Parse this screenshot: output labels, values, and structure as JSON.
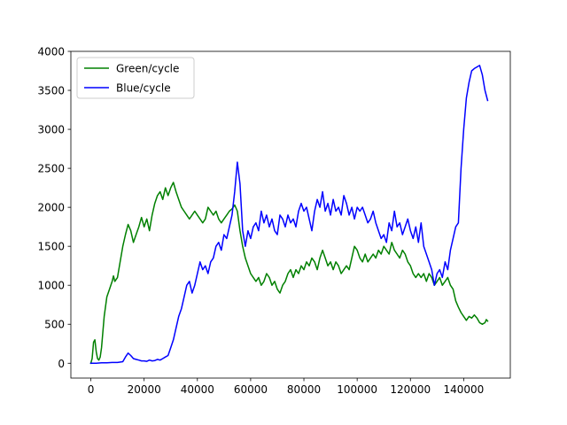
{
  "chart_data": {
    "type": "line",
    "title": "",
    "xlabel": "",
    "ylabel": "",
    "xlim": [
      -7500,
      157500
    ],
    "ylim": [
      -190,
      4000
    ],
    "x_ticks": [
      0,
      20000,
      40000,
      60000,
      80000,
      100000,
      120000,
      140000
    ],
    "x_tick_labels": [
      "0",
      "20000",
      "40000",
      "60000",
      "80000",
      "100000",
      "120000",
      "140000"
    ],
    "y_ticks": [
      0,
      500,
      1000,
      1500,
      2000,
      2500,
      3000,
      3500,
      4000
    ],
    "y_tick_labels": [
      "0",
      "500",
      "1000",
      "1500",
      "2000",
      "2500",
      "3000",
      "3500",
      "4000"
    ],
    "grid": false,
    "legend_position": "top-left",
    "series": [
      {
        "name": "Green/cycle",
        "color": "#008000",
        "points": [
          [
            0,
            0
          ],
          [
            500,
            60
          ],
          [
            1000,
            270
          ],
          [
            1500,
            300
          ],
          [
            2000,
            150
          ],
          [
            2500,
            60
          ],
          [
            3000,
            40
          ],
          [
            3500,
            80
          ],
          [
            4000,
            200
          ],
          [
            5000,
            600
          ],
          [
            6000,
            850
          ],
          [
            7000,
            950
          ],
          [
            8000,
            1050
          ],
          [
            8500,
            1120
          ],
          [
            9000,
            1050
          ],
          [
            10000,
            1100
          ],
          [
            11000,
            1300
          ],
          [
            12000,
            1500
          ],
          [
            13000,
            1650
          ],
          [
            14000,
            1780
          ],
          [
            15000,
            1700
          ],
          [
            16000,
            1550
          ],
          [
            17000,
            1650
          ],
          [
            18000,
            1750
          ],
          [
            19000,
            1870
          ],
          [
            20000,
            1750
          ],
          [
            21000,
            1850
          ],
          [
            22000,
            1700
          ],
          [
            23000,
            1900
          ],
          [
            24000,
            2050
          ],
          [
            25000,
            2150
          ],
          [
            26000,
            2200
          ],
          [
            27000,
            2100
          ],
          [
            28000,
            2250
          ],
          [
            29000,
            2150
          ],
          [
            30000,
            2250
          ],
          [
            31000,
            2320
          ],
          [
            32000,
            2200
          ],
          [
            33000,
            2100
          ],
          [
            34000,
            2000
          ],
          [
            35000,
            1950
          ],
          [
            36000,
            1900
          ],
          [
            37000,
            1850
          ],
          [
            38000,
            1900
          ],
          [
            39000,
            1950
          ],
          [
            40000,
            1900
          ],
          [
            41000,
            1850
          ],
          [
            42000,
            1800
          ],
          [
            43000,
            1850
          ],
          [
            44000,
            2000
          ],
          [
            45000,
            1950
          ],
          [
            46000,
            1900
          ],
          [
            47000,
            1950
          ],
          [
            48000,
            1850
          ],
          [
            49000,
            1800
          ],
          [
            50000,
            1850
          ],
          [
            51000,
            1900
          ],
          [
            52000,
            1950
          ],
          [
            53000,
            1980
          ],
          [
            54000,
            2030
          ],
          [
            55000,
            1950
          ],
          [
            56000,
            1700
          ],
          [
            57000,
            1500
          ],
          [
            58000,
            1350
          ],
          [
            59000,
            1250
          ],
          [
            60000,
            1150
          ],
          [
            61000,
            1100
          ],
          [
            62000,
            1050
          ],
          [
            63000,
            1100
          ],
          [
            64000,
            1000
          ],
          [
            65000,
            1050
          ],
          [
            66000,
            1150
          ],
          [
            67000,
            1100
          ],
          [
            68000,
            1000
          ],
          [
            69000,
            1050
          ],
          [
            70000,
            950
          ],
          [
            71000,
            900
          ],
          [
            72000,
            1000
          ],
          [
            73000,
            1050
          ],
          [
            74000,
            1150
          ],
          [
            75000,
            1200
          ],
          [
            76000,
            1100
          ],
          [
            77000,
            1200
          ],
          [
            78000,
            1150
          ],
          [
            79000,
            1250
          ],
          [
            80000,
            1200
          ],
          [
            81000,
            1300
          ],
          [
            82000,
            1250
          ],
          [
            83000,
            1350
          ],
          [
            84000,
            1300
          ],
          [
            85000,
            1200
          ],
          [
            86000,
            1350
          ],
          [
            87000,
            1450
          ],
          [
            88000,
            1350
          ],
          [
            89000,
            1250
          ],
          [
            90000,
            1300
          ],
          [
            91000,
            1200
          ],
          [
            92000,
            1300
          ],
          [
            93000,
            1250
          ],
          [
            94000,
            1150
          ],
          [
            95000,
            1200
          ],
          [
            96000,
            1250
          ],
          [
            97000,
            1200
          ],
          [
            98000,
            1350
          ],
          [
            99000,
            1500
          ],
          [
            100000,
            1450
          ],
          [
            101000,
            1350
          ],
          [
            102000,
            1300
          ],
          [
            103000,
            1400
          ],
          [
            104000,
            1300
          ],
          [
            105000,
            1350
          ],
          [
            106000,
            1400
          ],
          [
            107000,
            1350
          ],
          [
            108000,
            1450
          ],
          [
            109000,
            1400
          ],
          [
            110000,
            1500
          ],
          [
            111000,
            1450
          ],
          [
            112000,
            1400
          ],
          [
            113000,
            1550
          ],
          [
            114000,
            1450
          ],
          [
            115000,
            1400
          ],
          [
            116000,
            1350
          ],
          [
            117000,
            1450
          ],
          [
            118000,
            1400
          ],
          [
            119000,
            1300
          ],
          [
            120000,
            1250
          ],
          [
            121000,
            1150
          ],
          [
            122000,
            1100
          ],
          [
            123000,
            1150
          ],
          [
            124000,
            1100
          ],
          [
            125000,
            1150
          ],
          [
            126000,
            1050
          ],
          [
            127000,
            1150
          ],
          [
            128000,
            1100
          ],
          [
            129000,
            1000
          ],
          [
            130000,
            1050
          ],
          [
            131000,
            1100
          ],
          [
            132000,
            1000
          ],
          [
            133000,
            1050
          ],
          [
            134000,
            1100
          ],
          [
            135000,
            1000
          ],
          [
            136000,
            950
          ],
          [
            137000,
            800
          ],
          [
            138000,
            720
          ],
          [
            139000,
            650
          ],
          [
            140000,
            600
          ],
          [
            141000,
            550
          ],
          [
            142000,
            600
          ],
          [
            143000,
            580
          ],
          [
            144000,
            620
          ],
          [
            145000,
            580
          ],
          [
            146000,
            520
          ],
          [
            147000,
            500
          ],
          [
            148000,
            520
          ],
          [
            148500,
            560
          ],
          [
            149000,
            540
          ]
        ]
      },
      {
        "name": "Blue/cycle",
        "color": "#0000ff",
        "points": [
          [
            0,
            0
          ],
          [
            2000,
            0
          ],
          [
            4000,
            5
          ],
          [
            6000,
            5
          ],
          [
            8000,
            10
          ],
          [
            10000,
            10
          ],
          [
            12000,
            20
          ],
          [
            13000,
            80
          ],
          [
            14000,
            130
          ],
          [
            15000,
            100
          ],
          [
            16000,
            60
          ],
          [
            17000,
            50
          ],
          [
            18000,
            40
          ],
          [
            19000,
            30
          ],
          [
            20000,
            30
          ],
          [
            21000,
            25
          ],
          [
            22000,
            40
          ],
          [
            23000,
            30
          ],
          [
            24000,
            35
          ],
          [
            25000,
            50
          ],
          [
            26000,
            40
          ],
          [
            27000,
            60
          ],
          [
            28000,
            80
          ],
          [
            29000,
            100
          ],
          [
            30000,
            200
          ],
          [
            31000,
            300
          ],
          [
            32000,
            450
          ],
          [
            33000,
            600
          ],
          [
            34000,
            700
          ],
          [
            35000,
            850
          ],
          [
            36000,
            1000
          ],
          [
            37000,
            1050
          ],
          [
            38000,
            900
          ],
          [
            39000,
            1000
          ],
          [
            40000,
            1150
          ],
          [
            41000,
            1300
          ],
          [
            42000,
            1200
          ],
          [
            43000,
            1250
          ],
          [
            44000,
            1150
          ],
          [
            45000,
            1300
          ],
          [
            46000,
            1350
          ],
          [
            47000,
            1500
          ],
          [
            48000,
            1550
          ],
          [
            49000,
            1450
          ],
          [
            50000,
            1650
          ],
          [
            51000,
            1600
          ],
          [
            52000,
            1750
          ],
          [
            53000,
            1900
          ],
          [
            54000,
            2200
          ],
          [
            55000,
            2580
          ],
          [
            56000,
            2300
          ],
          [
            57000,
            1700
          ],
          [
            58000,
            1500
          ],
          [
            59000,
            1700
          ],
          [
            60000,
            1600
          ],
          [
            61000,
            1750
          ],
          [
            62000,
            1800
          ],
          [
            63000,
            1700
          ],
          [
            64000,
            1950
          ],
          [
            65000,
            1800
          ],
          [
            66000,
            1900
          ],
          [
            67000,
            1750
          ],
          [
            68000,
            1850
          ],
          [
            69000,
            1700
          ],
          [
            70000,
            1650
          ],
          [
            71000,
            1900
          ],
          [
            72000,
            1850
          ],
          [
            73000,
            1750
          ],
          [
            74000,
            1900
          ],
          [
            75000,
            1800
          ],
          [
            76000,
            1850
          ],
          [
            77000,
            1750
          ],
          [
            78000,
            1950
          ],
          [
            79000,
            2050
          ],
          [
            80000,
            1950
          ],
          [
            81000,
            2000
          ],
          [
            82000,
            1850
          ],
          [
            83000,
            1700
          ],
          [
            84000,
            1950
          ],
          [
            85000,
            2100
          ],
          [
            86000,
            2000
          ],
          [
            87000,
            2200
          ],
          [
            88000,
            1950
          ],
          [
            89000,
            2050
          ],
          [
            90000,
            1900
          ],
          [
            91000,
            2100
          ],
          [
            92000,
            1950
          ],
          [
            93000,
            2000
          ],
          [
            94000,
            1900
          ],
          [
            95000,
            2150
          ],
          [
            96000,
            2050
          ],
          [
            97000,
            1900
          ],
          [
            98000,
            2000
          ],
          [
            99000,
            1850
          ],
          [
            100000,
            2000
          ],
          [
            101000,
            1950
          ],
          [
            102000,
            2000
          ],
          [
            103000,
            1900
          ],
          [
            104000,
            1800
          ],
          [
            105000,
            1850
          ],
          [
            106000,
            1950
          ],
          [
            107000,
            1800
          ],
          [
            108000,
            1700
          ],
          [
            109000,
            1600
          ],
          [
            110000,
            1650
          ],
          [
            111000,
            1550
          ],
          [
            112000,
            1800
          ],
          [
            113000,
            1700
          ],
          [
            114000,
            1950
          ],
          [
            115000,
            1750
          ],
          [
            116000,
            1800
          ],
          [
            117000,
            1650
          ],
          [
            118000,
            1750
          ],
          [
            119000,
            1850
          ],
          [
            120000,
            1700
          ],
          [
            121000,
            1600
          ],
          [
            122000,
            1750
          ],
          [
            123000,
            1550
          ],
          [
            124000,
            1800
          ],
          [
            125000,
            1500
          ],
          [
            126000,
            1400
          ],
          [
            127000,
            1300
          ],
          [
            128000,
            1200
          ],
          [
            129000,
            1000
          ],
          [
            130000,
            1150
          ],
          [
            131000,
            1200
          ],
          [
            132000,
            1100
          ],
          [
            133000,
            1300
          ],
          [
            134000,
            1200
          ],
          [
            135000,
            1450
          ],
          [
            136000,
            1600
          ],
          [
            137000,
            1750
          ],
          [
            138000,
            1800
          ],
          [
            139000,
            2500
          ],
          [
            140000,
            3000
          ],
          [
            141000,
            3400
          ],
          [
            142000,
            3600
          ],
          [
            143000,
            3750
          ],
          [
            144000,
            3780
          ],
          [
            145000,
            3800
          ],
          [
            146000,
            3820
          ],
          [
            147000,
            3700
          ],
          [
            148000,
            3500
          ],
          [
            149000,
            3370
          ]
        ]
      }
    ]
  }
}
